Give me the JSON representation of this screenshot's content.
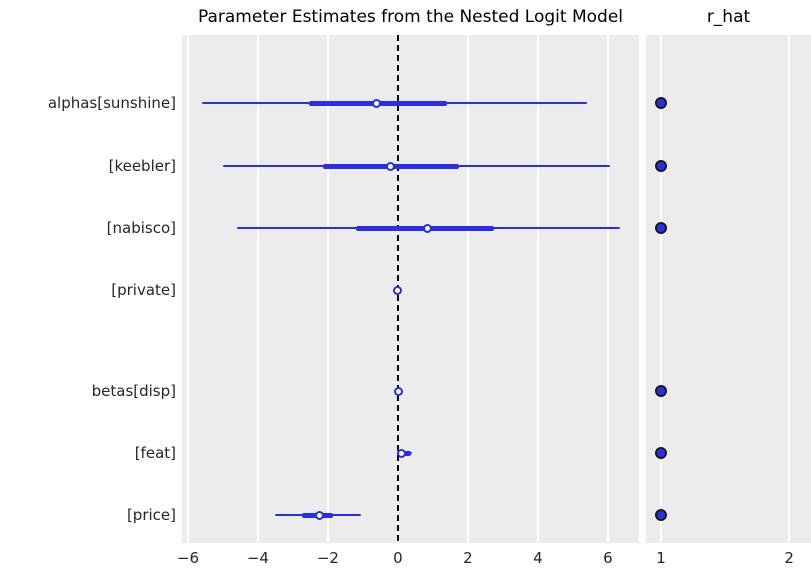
{
  "colors": {
    "accent": "#2a2eec",
    "panel_bg": "#ececec",
    "gridline": "#ffffff",
    "text": "#262626",
    "zero_line": "#000000"
  },
  "chart_data": [
    {
      "type": "forest",
      "title": "Parameter Estimates from the Nested Logit Model",
      "xlabel": "",
      "xlim": [
        -6.17,
        6.89
      ],
      "xticks": [
        -6,
        -4,
        -2,
        0,
        2,
        4,
        6
      ],
      "xtick_labels": [
        "−6",
        "−4",
        "−2",
        "0",
        "2",
        "4",
        "6"
      ],
      "grid": "vertical-white-on-gray",
      "zero_reference_line": 0,
      "rows": [
        {
          "label": "alphas[sunshine]",
          "ci_outer": [
            -5.6,
            5.4
          ],
          "ci_inner": [
            -2.55,
            1.4
          ],
          "median": -0.6
        },
        {
          "label": "[keebler]",
          "ci_outer": [
            -5.0,
            6.05
          ],
          "ci_inner": [
            -2.15,
            1.75
          ],
          "median": -0.2
        },
        {
          "label": "[nabisco]",
          "ci_outer": [
            -4.6,
            6.35
          ],
          "ci_inner": [
            -1.2,
            2.75
          ],
          "median": 0.85
        },
        {
          "label": "[private]",
          "ci_outer": [
            0.0,
            0.0
          ],
          "ci_inner": [
            0.0,
            0.0
          ],
          "median": 0.0
        },
        {
          "label": "betas[disp]",
          "ci_outer": [
            -0.06,
            0.12
          ],
          "ci_inner": [
            -0.01,
            0.05
          ],
          "median": 0.02
        },
        {
          "label": "[feat]",
          "ci_outer": [
            -0.04,
            0.4
          ],
          "ci_inner": [
            0.02,
            0.37
          ],
          "median": 0.1
        },
        {
          "label": "[price]",
          "ci_outer": [
            -3.5,
            -1.05
          ],
          "ci_inner": [
            -2.75,
            -1.85
          ],
          "median": -2.25
        }
      ]
    },
    {
      "type": "scatter",
      "title": "r_hat",
      "xlim": [
        0.883,
        2.17
      ],
      "xticks": [
        1,
        2
      ],
      "xtick_labels": [
        "1",
        "2"
      ],
      "grid": "vertical-white-on-gray",
      "values": [
        1.0,
        1.0,
        1.0,
        null,
        1.0,
        1.0,
        1.0
      ]
    }
  ]
}
